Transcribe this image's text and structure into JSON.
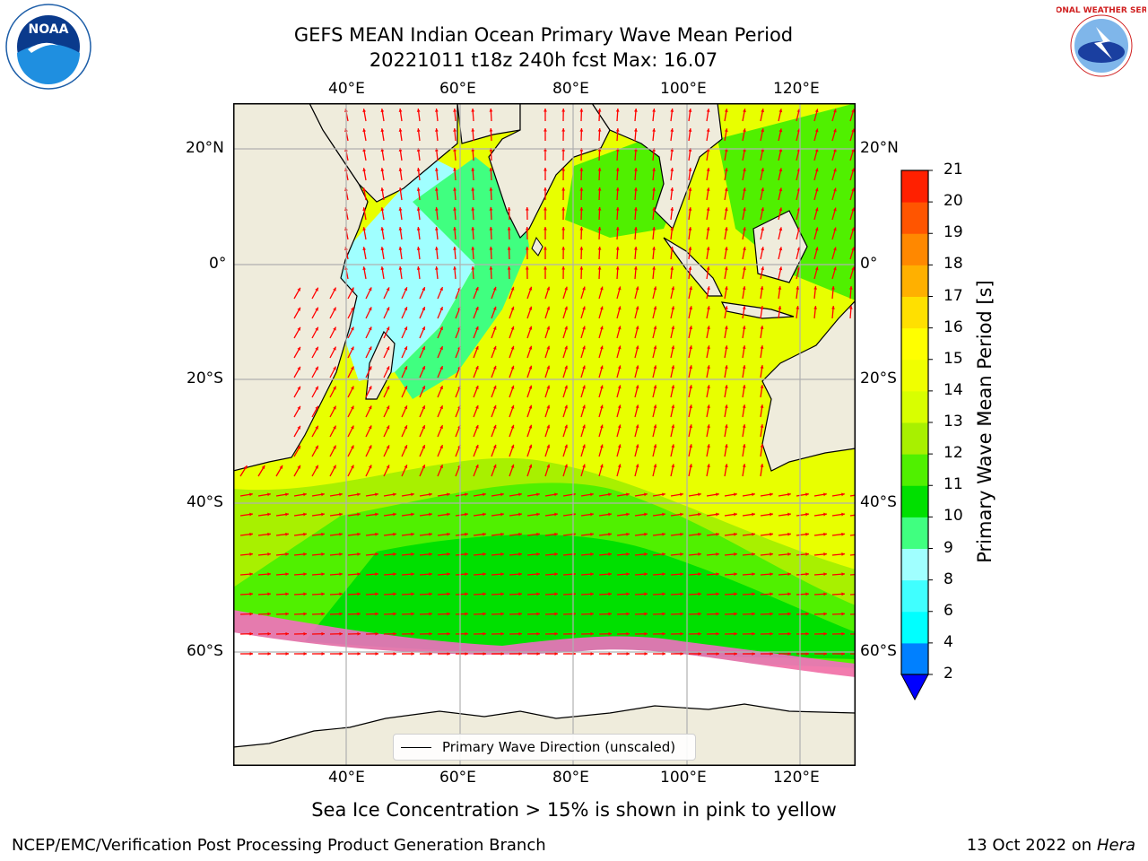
{
  "header": {
    "title_line1": "GEFS MEAN Indian Ocean Primary Wave Mean Period",
    "title_line2": "20221011 t18z 240h fcst   Max: 16.07"
  },
  "logos": {
    "left": {
      "name": "noaa-logo",
      "text": "NOAA"
    },
    "right": {
      "name": "nws-logo",
      "text": "NATIONAL WEATHER SERVICE"
    }
  },
  "map": {
    "lon_ticks": [
      "40°E",
      "60°E",
      "80°E",
      "100°E",
      "120°E"
    ],
    "lat_ticks": [
      "20°N",
      "0°",
      "20°S",
      "40°S",
      "60°S"
    ],
    "colors": {
      "land": "#efecdc",
      "ice_white": "#ffffff",
      "arrow": "#ff0000",
      "grid": "#b0b0b0"
    }
  },
  "legend": {
    "label": "Primary Wave Direction (unscaled)"
  },
  "colorbar": {
    "label": "Primary Wave Mean Period [s]",
    "ticks": [
      "2",
      "4",
      "6",
      "8",
      "9",
      "10",
      "11",
      "12",
      "13",
      "14",
      "15",
      "16",
      "17",
      "18",
      "19",
      "20",
      "21"
    ],
    "colors": [
      "#0080ff",
      "#00ffff",
      "#40ffff",
      "#a0ffff",
      "#40ff80",
      "#00e000",
      "#50f000",
      "#a8f000",
      "#d8ff00",
      "#f0ff00",
      "#ffff00",
      "#ffe000",
      "#ffb000",
      "#ff8800",
      "#ff5500",
      "#ff2000"
    ],
    "extend_color": "#0000ff"
  },
  "note": "Sea Ice Concentration > 15% is shown in pink to yellow",
  "footer": {
    "left": "NCEP/EMC/Verification Post Processing Product Generation Branch",
    "right_date": "13 Oct 2022 on",
    "right_machine": "Hera"
  }
}
